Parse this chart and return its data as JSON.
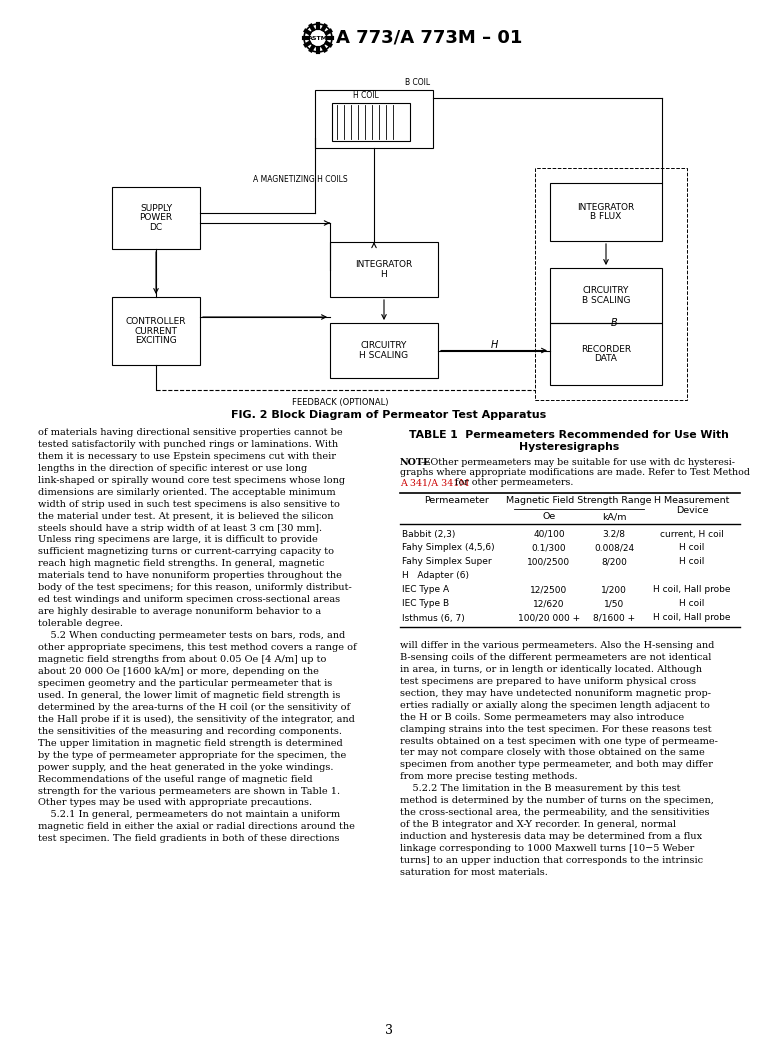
{
  "title": "A 773/A 773M – 01",
  "fig_caption": "FIG. 2 Block Diagram of Permeator Test Apparatus",
  "feedback_label": "FEEDBACK (OPTIONAL)",
  "table_title_line1": "TABLE 1  Permeameters Recommended for Use With",
  "table_title_line2": "Hysteresigraphs",
  "table_note_link": "A 341/A 341M",
  "table_rows": [
    [
      "Babbit (2,3)",
      "40/100",
      "3.2/8",
      "current, H coil"
    ],
    [
      "Fahy Simplex (4,5,6)",
      "0.1/300",
      "0.008/24",
      "H coil"
    ],
    [
      "Fahy Simplex Super",
      "100/2500",
      "8/200",
      "H coil"
    ],
    [
      "H   Adapter (6)",
      "",
      "",
      ""
    ],
    [
      "IEC Type A",
      "12/2500",
      "1/200",
      "H coil, Hall probe"
    ],
    [
      "IEC Type B",
      "12/620",
      "1/50",
      "H coil"
    ],
    [
      "Isthmus (6, 7)",
      "100/20 000 +",
      "8/1600 +",
      "H coil, Hall probe"
    ]
  ],
  "left_col_text": "of materials having directional sensitive properties cannot be\ntested satisfactorily with punched rings or laminations. With\nthem it is necessary to use Epstein specimens cut with their\nlengths in the direction of specific interest or use long\nlink-shaped or spirally wound core test specimens whose long\ndimensions are similarly oriented. The acceptable minimum\nwidth of strip used in such test specimens is also sensitive to\nthe material under test. At present, it is believed the silicon\nsteels should have a strip width of at least 3 cm [30 mm].\nUnless ring specimens are large, it is difficult to provide\nsufficient magnetizing turns or current-carrying capacity to\nreach high magnetic field strengths. In general, magnetic\nmaterials tend to have nonuniform properties throughout the\nbody of the test specimens; for this reason, uniformly distribut-\ned test windings and uniform specimen cross-sectional areas\nare highly desirable to average nonuniform behavior to a\ntolerable degree.\n    5.2 When conducting permeameter tests on bars, rods, and\nother appropriate specimens, this test method covers a range of\nmagnetic field strengths from about 0.05 Oe [4 A/m] up to\nabout 20 000 Oe [1600 kA/m] or more, depending on the\nspecimen geometry and the particular permeameter that is\nused. In general, the lower limit of magnetic field strength is\ndetermined by the area-turns of the H coil (or the sensitivity of\nthe Hall probe if it is used), the sensitivity of the integrator, and\nthe sensitivities of the measuring and recording components.\nThe upper limitation in magnetic field strength is determined\nby the type of permeameter appropriate for the specimen, the\npower supply, and the heat generated in the yoke windings.\nRecommendations of the useful range of magnetic field\nstrength for the various permeameters are shown in Table 1.\nOther types may be used with appropriate precautions.\n    5.2.1 In general, permeameters do not maintain a uniform\nmagnetic field in either the axial or radial directions around the\ntest specimen. The field gradients in both of these directions",
  "right_col_text": "will differ in the various permeameters. Also the H-sensing and\nB-sensing coils of the different permeameters are not identical\nin area, in turns, or in length or identically located. Although\ntest specimens are prepared to have uniform physical cross\nsection, they may have undetected nonuniform magnetic prop-\nerties radially or axially along the specimen length adjacent to\nthe H or B coils. Some permeameters may also introduce\nclamping strains into the test specimen. For these reasons test\nresults obtained on a test specimen with one type of permeame-\nter may not compare closely with those obtained on the same\nspecimen from another type permeameter, and both may differ\nfrom more precise testing methods.\n    5.2.2 The limitation in the B measurement by this test\nmethod is determined by the number of turns on the specimen,\nthe cross-sectional area, the permeability, and the sensitivities\nof the B integrator and X-Y recorder. In general, normal\ninduction and hysteresis data may be determined from a flux\nlinkage corresponding to 1000 Maxwell turns [10−5 Weber\nturns] to an upper induction that corresponds to the intrinsic\nsaturation for most materials.",
  "page_number": "3",
  "bg_color": "#ffffff",
  "link_color": "#cc0000"
}
